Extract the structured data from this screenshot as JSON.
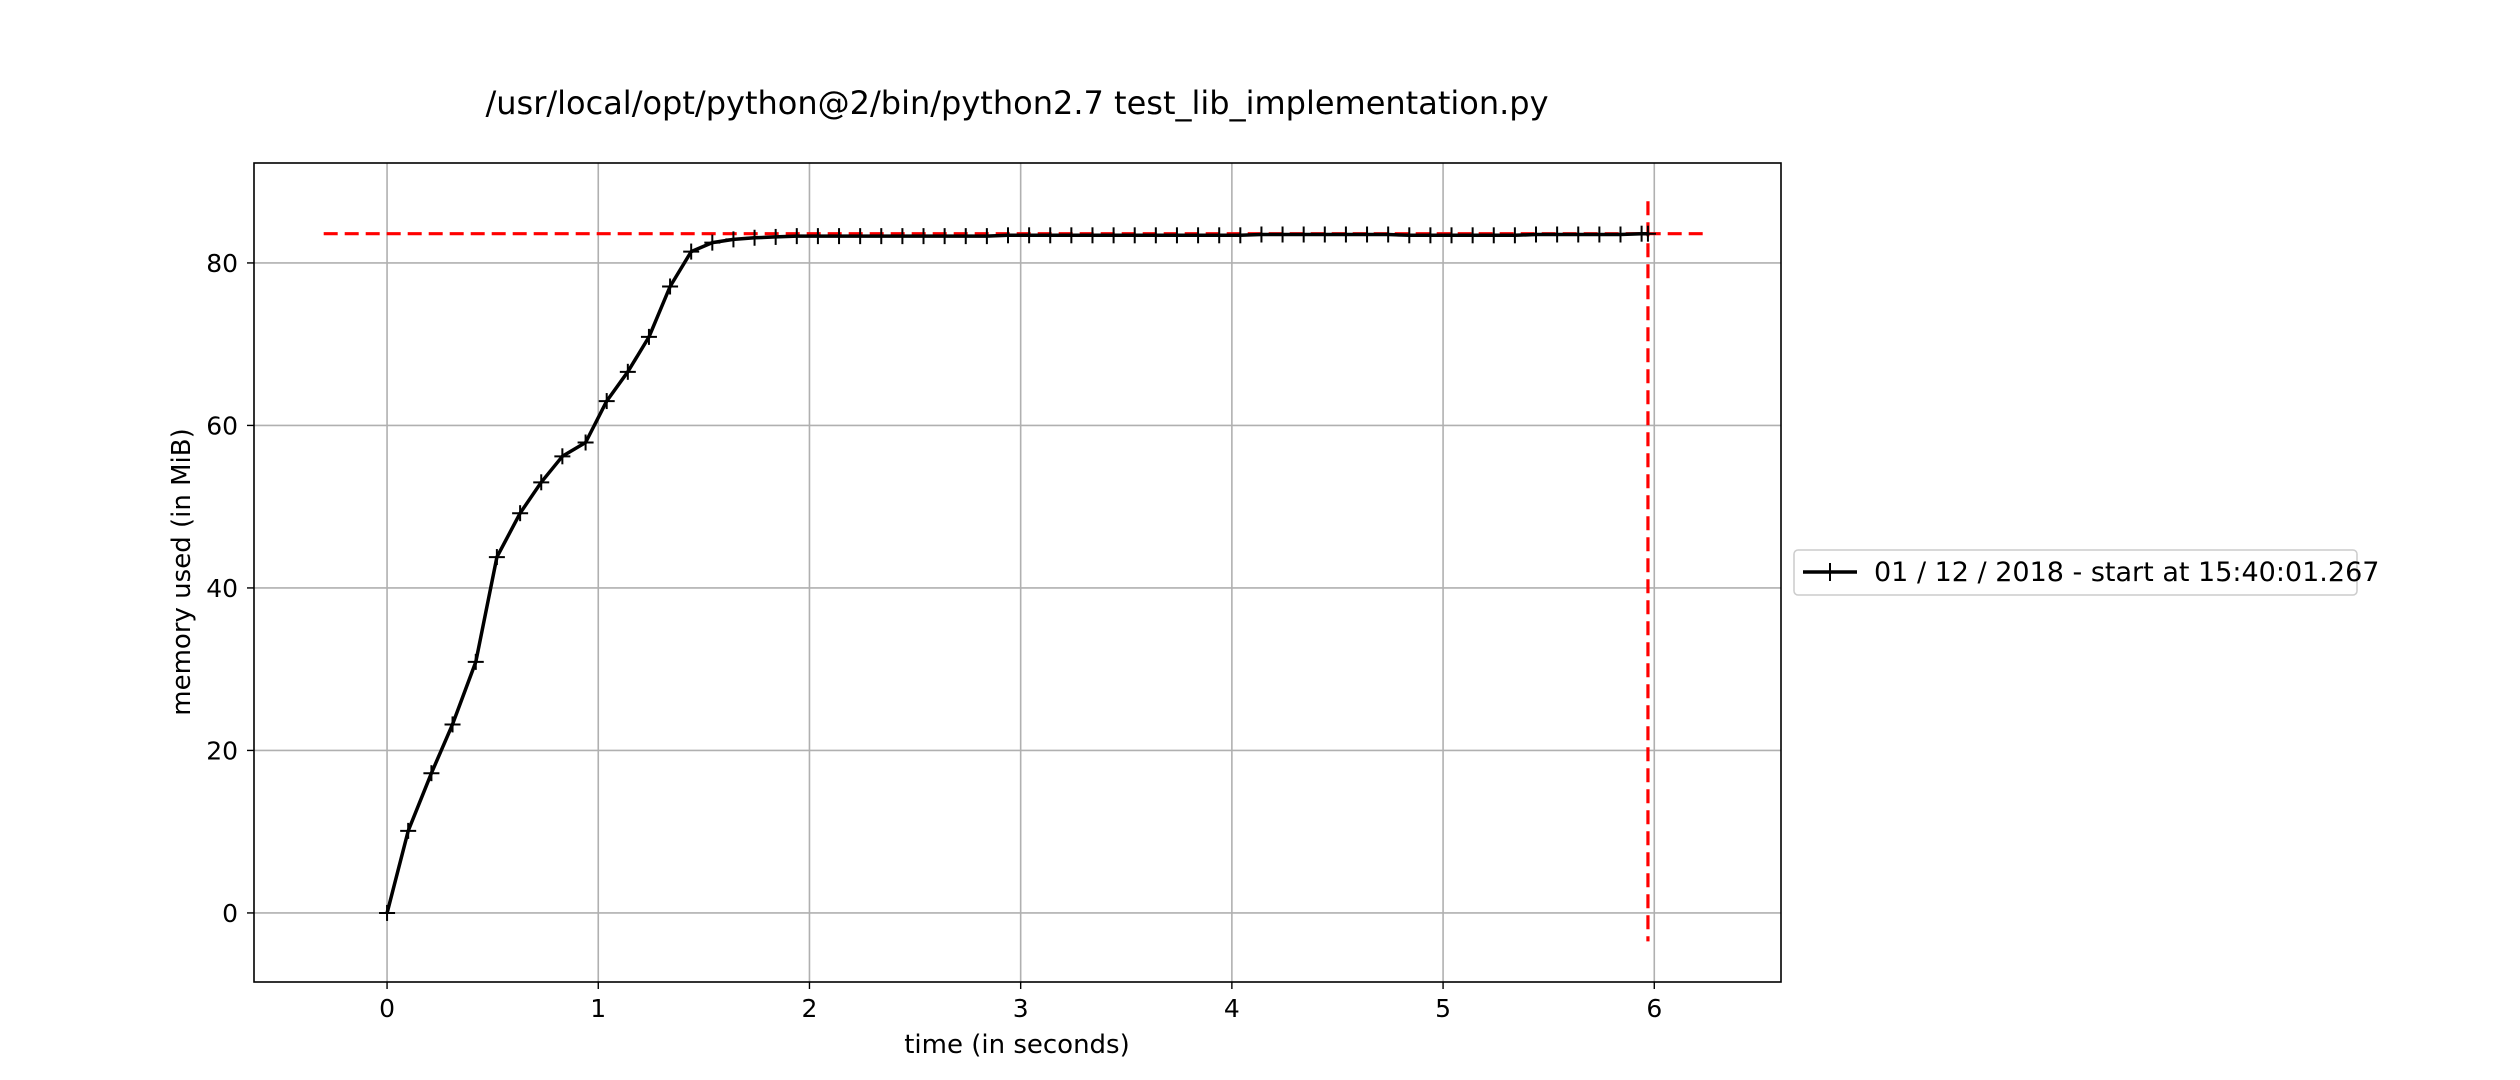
{
  "chart_data": {
    "type": "line",
    "title": "/usr/local/opt/python@2/bin/python2.7 test_lib_implementation.py",
    "xlabel": "time (in seconds)",
    "ylabel": "memory used (in MiB)",
    "xlim": [
      -0.63,
      6.6
    ],
    "ylim": [
      -8.5,
      92.3
    ],
    "xticks": [
      0,
      1,
      2,
      3,
      4,
      5,
      6
    ],
    "yticks": [
      0,
      20,
      40,
      60,
      80
    ],
    "xtick_labels": [
      "0",
      "1",
      "2",
      "3",
      "4",
      "5",
      "6"
    ],
    "ytick_labels": [
      "0",
      "20",
      "40",
      "60",
      "80"
    ],
    "grid": true,
    "legend_position": "outside-right",
    "series": [
      {
        "name": "01 / 12 / 2018 - start at 15:40:01.267",
        "color": "#000000",
        "marker": "plus",
        "x": [
          0.0,
          0.1,
          0.21,
          0.31,
          0.42,
          0.52,
          0.63,
          0.73,
          0.83,
          0.94,
          1.04,
          1.14,
          1.24,
          1.34,
          1.44,
          1.54,
          1.64,
          1.74,
          1.84,
          1.94,
          2.04,
          2.14,
          2.24,
          2.34,
          2.44,
          2.54,
          2.64,
          2.74,
          2.84,
          2.94,
          3.04,
          3.14,
          3.24,
          3.34,
          3.44,
          3.54,
          3.64,
          3.74,
          3.84,
          3.94,
          4.04,
          4.14,
          4.24,
          4.34,
          4.44,
          4.54,
          4.64,
          4.74,
          4.84,
          4.94,
          5.04,
          5.14,
          5.24,
          5.34,
          5.44,
          5.54,
          5.64,
          5.74,
          5.84,
          5.94,
          5.97
        ],
        "y": [
          0.0,
          10.1,
          17.2,
          23.2,
          30.9,
          43.8,
          49.2,
          53.0,
          56.2,
          57.9,
          63.0,
          66.6,
          70.9,
          77.1,
          81.4,
          82.5,
          82.9,
          83.1,
          83.2,
          83.3,
          83.3,
          83.3,
          83.3,
          83.3,
          83.3,
          83.3,
          83.3,
          83.3,
          83.3,
          83.4,
          83.4,
          83.4,
          83.4,
          83.4,
          83.4,
          83.4,
          83.4,
          83.4,
          83.4,
          83.4,
          83.4,
          83.5,
          83.5,
          83.5,
          83.5,
          83.5,
          83.5,
          83.5,
          83.4,
          83.4,
          83.4,
          83.4,
          83.4,
          83.4,
          83.5,
          83.5,
          83.5,
          83.5,
          83.5,
          83.6,
          83.6
        ]
      }
    ],
    "reference_lines": {
      "color": "#ff0000",
      "style": "dashed",
      "horizontal": {
        "y": 83.6,
        "x_from": -0.3,
        "x_to": 6.26
      },
      "vertical": {
        "x": 5.97,
        "y_from": -3.5,
        "y_to": 87.6
      }
    }
  }
}
